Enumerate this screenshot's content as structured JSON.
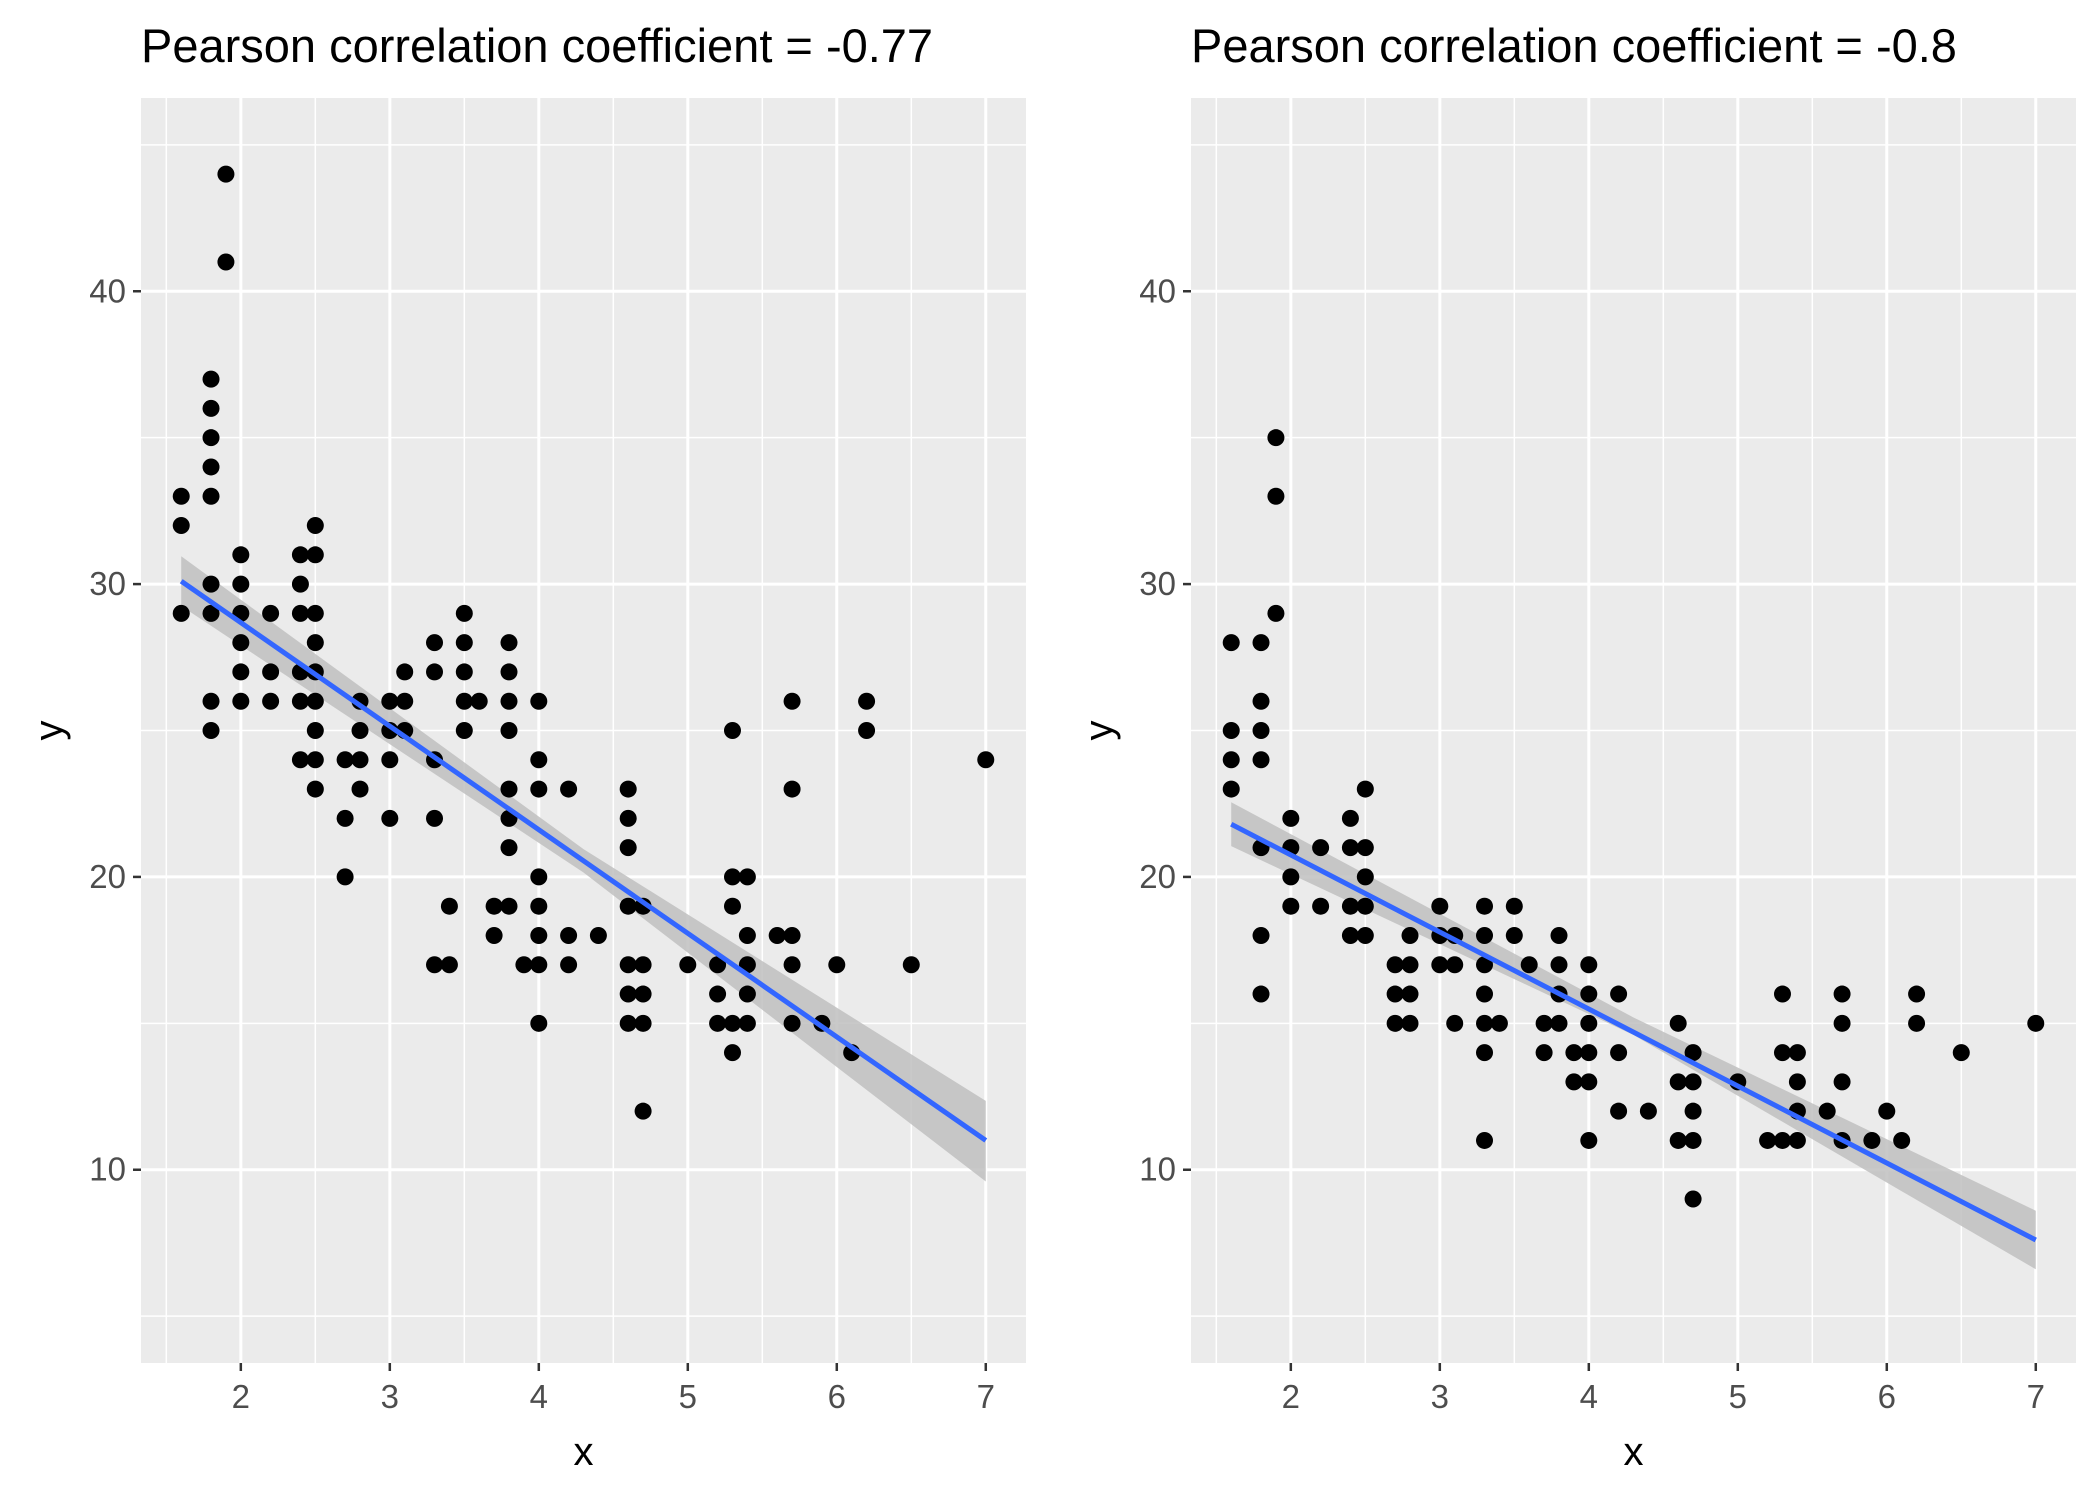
{
  "chart_data": [
    {
      "type": "scatter",
      "title": "Pearson correlation coefficient = -0.77",
      "xlabel": "x",
      "ylabel": "y",
      "xlim": [
        1.33,
        7.27
      ],
      "ylim": [
        3.4,
        46.6
      ],
      "x_ticks": [
        2,
        3,
        4,
        5,
        6,
        7
      ],
      "y_ticks": [
        10,
        20,
        30,
        40
      ],
      "grid": true,
      "legend": "none",
      "colors": {
        "panel_background": "#ebebeb",
        "grid": "#ffffff",
        "points": "#000000",
        "fit_line": "#3366ff",
        "confidence_band": "#c0c0c0"
      },
      "points": [
        [
          1.6,
          33
        ],
        [
          1.6,
          32
        ],
        [
          1.6,
          29
        ],
        [
          1.8,
          37
        ],
        [
          1.8,
          36
        ],
        [
          1.8,
          35
        ],
        [
          1.8,
          34
        ],
        [
          1.8,
          33
        ],
        [
          1.8,
          30
        ],
        [
          1.8,
          29
        ],
        [
          1.8,
          26
        ],
        [
          1.8,
          25
        ],
        [
          1.9,
          44
        ],
        [
          1.9,
          41
        ],
        [
          2.0,
          31
        ],
        [
          2.0,
          30
        ],
        [
          2.0,
          29
        ],
        [
          2.0,
          28
        ],
        [
          2.0,
          27
        ],
        [
          2.0,
          26
        ],
        [
          2.2,
          29
        ],
        [
          2.2,
          27
        ],
        [
          2.2,
          26
        ],
        [
          2.4,
          31
        ],
        [
          2.4,
          30
        ],
        [
          2.4,
          29
        ],
        [
          2.4,
          27
        ],
        [
          2.4,
          26
        ],
        [
          2.4,
          24
        ],
        [
          2.5,
          32
        ],
        [
          2.5,
          31
        ],
        [
          2.5,
          29
        ],
        [
          2.5,
          28
        ],
        [
          2.5,
          27
        ],
        [
          2.5,
          26
        ],
        [
          2.5,
          25
        ],
        [
          2.5,
          24
        ],
        [
          2.5,
          23
        ],
        [
          2.7,
          24
        ],
        [
          2.7,
          22
        ],
        [
          2.7,
          20
        ],
        [
          2.8,
          26
        ],
        [
          2.8,
          25
        ],
        [
          2.8,
          24
        ],
        [
          2.8,
          23
        ],
        [
          3.0,
          26
        ],
        [
          3.0,
          25
        ],
        [
          3.0,
          24
        ],
        [
          3.0,
          22
        ],
        [
          3.1,
          27
        ],
        [
          3.1,
          26
        ],
        [
          3.1,
          25
        ],
        [
          3.3,
          28
        ],
        [
          3.3,
          27
        ],
        [
          3.3,
          24
        ],
        [
          3.3,
          22
        ],
        [
          3.3,
          17
        ],
        [
          3.4,
          19
        ],
        [
          3.4,
          17
        ],
        [
          3.5,
          29
        ],
        [
          3.5,
          28
        ],
        [
          3.5,
          27
        ],
        [
          3.5,
          26
        ],
        [
          3.5,
          25
        ],
        [
          3.6,
          26
        ],
        [
          3.7,
          19
        ],
        [
          3.7,
          18
        ],
        [
          3.8,
          28
        ],
        [
          3.8,
          27
        ],
        [
          3.8,
          26
        ],
        [
          3.8,
          25
        ],
        [
          3.8,
          23
        ],
        [
          3.8,
          22
        ],
        [
          3.8,
          21
        ],
        [
          3.8,
          19
        ],
        [
          3.9,
          17
        ],
        [
          4.0,
          26
        ],
        [
          4.0,
          24
        ],
        [
          4.0,
          23
        ],
        [
          4.0,
          20
        ],
        [
          4.0,
          19
        ],
        [
          4.0,
          18
        ],
        [
          4.0,
          17
        ],
        [
          4.0,
          15
        ],
        [
          4.2,
          23
        ],
        [
          4.2,
          18
        ],
        [
          4.2,
          17
        ],
        [
          4.4,
          18
        ],
        [
          4.6,
          23
        ],
        [
          4.6,
          22
        ],
        [
          4.6,
          21
        ],
        [
          4.6,
          19
        ],
        [
          4.6,
          17
        ],
        [
          4.6,
          16
        ],
        [
          4.6,
          15
        ],
        [
          4.7,
          19
        ],
        [
          4.7,
          17
        ],
        [
          4.7,
          16
        ],
        [
          4.7,
          15
        ],
        [
          4.7,
          12
        ],
        [
          5.0,
          17
        ],
        [
          5.2,
          17
        ],
        [
          5.2,
          16
        ],
        [
          5.2,
          15
        ],
        [
          5.3,
          25
        ],
        [
          5.3,
          20
        ],
        [
          5.3,
          19
        ],
        [
          5.3,
          15
        ],
        [
          5.3,
          14
        ],
        [
          5.4,
          20
        ],
        [
          5.4,
          18
        ],
        [
          5.4,
          17
        ],
        [
          5.4,
          16
        ],
        [
          5.4,
          15
        ],
        [
          5.6,
          18
        ],
        [
          5.7,
          26
        ],
        [
          5.7,
          23
        ],
        [
          5.7,
          18
        ],
        [
          5.7,
          17
        ],
        [
          5.7,
          15
        ],
        [
          5.9,
          15
        ],
        [
          6.0,
          17
        ],
        [
          6.1,
          14
        ],
        [
          6.2,
          26
        ],
        [
          6.2,
          25
        ],
        [
          6.5,
          17
        ],
        [
          7.0,
          24
        ]
      ],
      "fit": {
        "x": [
          1.6,
          7.0
        ],
        "y": [
          30.1,
          11.0
        ]
      },
      "band": {
        "x": [
          1.6,
          4.3,
          7.0
        ],
        "upper": [
          30.95,
          20.95,
          12.35
        ],
        "lower": [
          29.25,
          20.15,
          9.6
        ]
      }
    },
    {
      "type": "scatter",
      "title": "Pearson correlation coefficient = -0.8",
      "xlabel": "x",
      "ylabel": "y",
      "xlim": [
        1.33,
        7.27
      ],
      "ylim": [
        3.4,
        46.6
      ],
      "x_ticks": [
        2,
        3,
        4,
        5,
        6,
        7
      ],
      "y_ticks": [
        10,
        20,
        30,
        40
      ],
      "grid": true,
      "legend": "none",
      "colors": {
        "panel_background": "#ebebeb",
        "grid": "#ffffff",
        "points": "#000000",
        "fit_line": "#3366ff",
        "confidence_band": "#c0c0c0"
      },
      "points": [
        [
          1.6,
          28
        ],
        [
          1.6,
          25
        ],
        [
          1.6,
          24
        ],
        [
          1.6,
          23
        ],
        [
          1.8,
          28
        ],
        [
          1.8,
          26
        ],
        [
          1.8,
          25
        ],
        [
          1.8,
          24
        ],
        [
          1.8,
          21
        ],
        [
          1.8,
          18
        ],
        [
          1.8,
          16
        ],
        [
          1.9,
          35
        ],
        [
          1.9,
          33
        ],
        [
          1.9,
          29
        ],
        [
          2.0,
          22
        ],
        [
          2.0,
          21
        ],
        [
          2.0,
          20
        ],
        [
          2.0,
          19
        ],
        [
          2.2,
          21
        ],
        [
          2.2,
          19
        ],
        [
          2.4,
          22
        ],
        [
          2.4,
          21
        ],
        [
          2.4,
          19
        ],
        [
          2.4,
          18
        ],
        [
          2.5,
          23
        ],
        [
          2.5,
          21
        ],
        [
          2.5,
          20
        ],
        [
          2.5,
          19
        ],
        [
          2.5,
          18
        ],
        [
          2.7,
          17
        ],
        [
          2.7,
          16
        ],
        [
          2.7,
          15
        ],
        [
          2.8,
          18
        ],
        [
          2.8,
          17
        ],
        [
          2.8,
          16
        ],
        [
          2.8,
          15
        ],
        [
          3.0,
          19
        ],
        [
          3.0,
          18
        ],
        [
          3.0,
          17
        ],
        [
          3.1,
          18
        ],
        [
          3.1,
          17
        ],
        [
          3.1,
          15
        ],
        [
          3.3,
          19
        ],
        [
          3.3,
          18
        ],
        [
          3.3,
          17
        ],
        [
          3.3,
          16
        ],
        [
          3.3,
          15
        ],
        [
          3.3,
          14
        ],
        [
          3.3,
          11
        ],
        [
          3.4,
          15
        ],
        [
          3.5,
          19
        ],
        [
          3.5,
          18
        ],
        [
          3.6,
          17
        ],
        [
          3.7,
          15
        ],
        [
          3.7,
          14
        ],
        [
          3.8,
          18
        ],
        [
          3.8,
          17
        ],
        [
          3.8,
          16
        ],
        [
          3.8,
          15
        ],
        [
          3.9,
          14
        ],
        [
          3.9,
          13
        ],
        [
          4.0,
          17
        ],
        [
          4.0,
          16
        ],
        [
          4.0,
          15
        ],
        [
          4.0,
          14
        ],
        [
          4.0,
          13
        ],
        [
          4.0,
          11
        ],
        [
          4.2,
          16
        ],
        [
          4.2,
          14
        ],
        [
          4.2,
          12
        ],
        [
          4.4,
          12
        ],
        [
          4.6,
          15
        ],
        [
          4.6,
          13
        ],
        [
          4.6,
          11
        ],
        [
          4.7,
          14
        ],
        [
          4.7,
          13
        ],
        [
          4.7,
          12
        ],
        [
          4.7,
          11
        ],
        [
          4.7,
          9
        ],
        [
          5.0,
          13
        ],
        [
          5.2,
          11
        ],
        [
          5.3,
          16
        ],
        [
          5.3,
          14
        ],
        [
          5.3,
          11
        ],
        [
          5.4,
          14
        ],
        [
          5.4,
          13
        ],
        [
          5.4,
          12
        ],
        [
          5.4,
          11
        ],
        [
          5.6,
          12
        ],
        [
          5.7,
          16
        ],
        [
          5.7,
          15
        ],
        [
          5.7,
          13
        ],
        [
          5.7,
          11
        ],
        [
          5.9,
          11
        ],
        [
          6.0,
          12
        ],
        [
          6.1,
          11
        ],
        [
          6.2,
          16
        ],
        [
          6.2,
          15
        ],
        [
          6.5,
          14
        ],
        [
          7.0,
          15
        ]
      ],
      "fit": {
        "x": [
          1.6,
          7.0
        ],
        "y": [
          21.8,
          7.6
        ]
      },
      "band": {
        "x": [
          1.6,
          4.3,
          7.0
        ],
        "upper": [
          22.55,
          15.2,
          8.6
        ],
        "lower": [
          21.05,
          14.6,
          6.6
        ]
      }
    }
  ]
}
